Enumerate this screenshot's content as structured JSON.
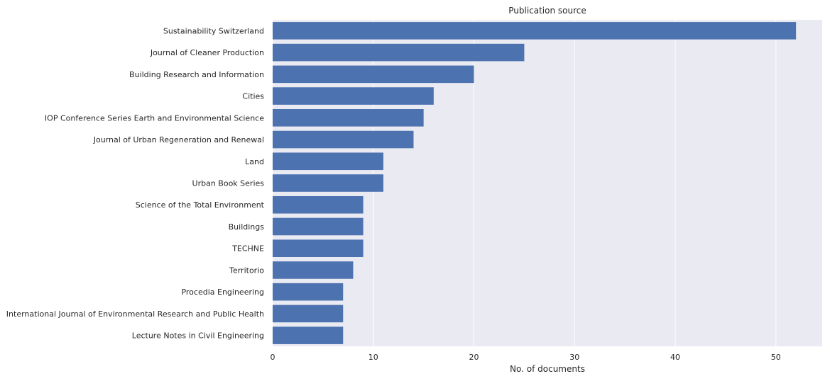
{
  "chart_data": {
    "type": "bar",
    "orientation": "horizontal",
    "title": "Publication source",
    "xlabel": "No. of documents",
    "ylabel": "",
    "categories": [
      "Sustainability Switzerland",
      "Journal of Cleaner Production",
      "Building Research and Information",
      "Cities",
      "IOP Conference Series Earth and Environmental Science",
      "Journal of Urban Regeneration and Renewal",
      "Land",
      "Urban Book Series",
      "Science of the Total Environment",
      "Buildings",
      "TECHNE",
      "Territorio",
      "Procedia Engineering",
      "International Journal of Environmental Research and Public Health",
      "Lecture Notes in Civil Engineering"
    ],
    "values": [
      52,
      25,
      20,
      16,
      15,
      14,
      11,
      11,
      9,
      9,
      9,
      8,
      7,
      7,
      7
    ],
    "xlim": [
      0,
      54.6
    ],
    "xticks": [
      0,
      10,
      20,
      30,
      40,
      50
    ],
    "grid": true,
    "colors": {
      "bar": "#4c72b0",
      "background": "#eaeaf2",
      "grid": "#ffffff"
    }
  }
}
